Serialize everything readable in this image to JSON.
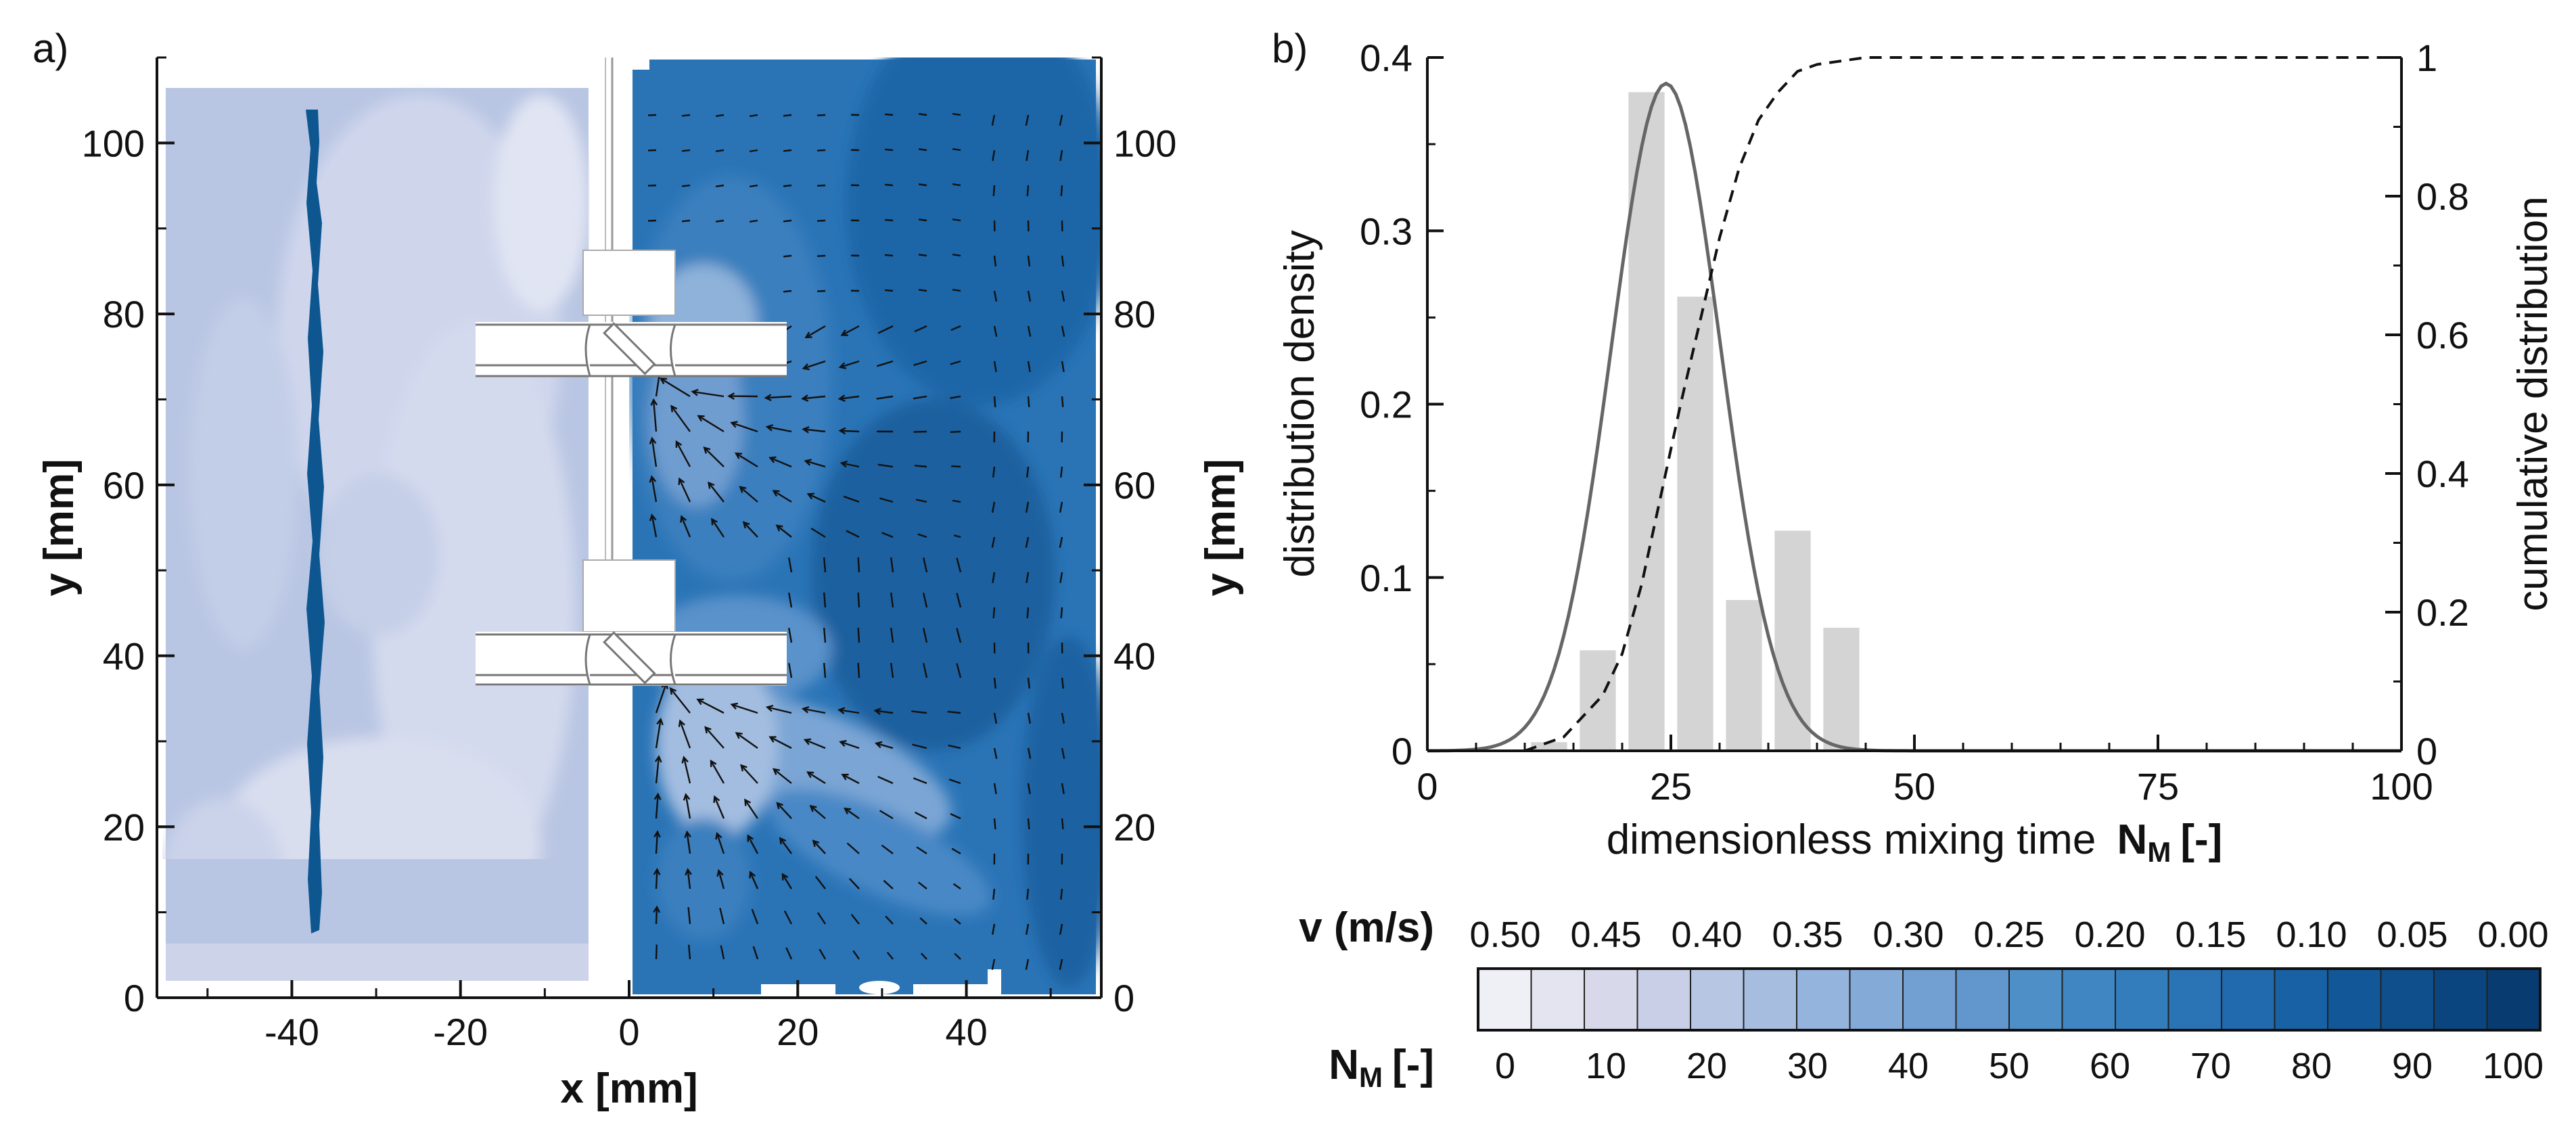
{
  "chart_data": [
    {
      "panel": "a)",
      "type": "heatmap",
      "description_type": "contour field of mixing time with velocity vectors",
      "xlabel": "x [mm]",
      "ylabel_left": "y [mm]",
      "ylabel_right": "y [mm]",
      "xlim": [
        -56,
        56
      ],
      "ylim": [
        0,
        110
      ],
      "xticks": [
        -40,
        -20,
        0,
        20,
        40
      ],
      "yticks": [
        0,
        20,
        40,
        60,
        80,
        100
      ]
    },
    {
      "panel": "b)",
      "type": "bar",
      "xlabel": "dimensionless mixing time",
      "xlabel_var": "N",
      "xlabel_sub": "M",
      "xlabel_unit": "[-]",
      "ylabel_left": "distribution density",
      "ylabel_right": "cumulative distribution",
      "xlim": [
        0,
        100
      ],
      "ylim_left": [
        0,
        0.4
      ],
      "ylim_right": [
        0,
        1
      ],
      "xticks": [
        "0",
        "25",
        "50",
        "75",
        "100"
      ],
      "yticks_left": [
        "0",
        "0.1",
        "0.2",
        "0.3",
        "0.4"
      ],
      "yticks_right": [
        "0",
        "0.2",
        "0.4",
        "0.6",
        "0.8",
        "1"
      ],
      "bars": {
        "x": [
          12.5,
          17.5,
          22.5,
          27.5,
          32.5,
          37.5,
          42.5
        ],
        "width": 3.7,
        "values": [
          0.005,
          0.058,
          0.38,
          0.262,
          0.087,
          0.127,
          0.071
        ]
      },
      "density_curve": {
        "mean": 24.5,
        "sd": 5.6,
        "peak": 0.385
      },
      "cumulative_curve": {
        "x": [
          10,
          14,
          18,
          20,
          22,
          24,
          26,
          28,
          30,
          32,
          34,
          36,
          38,
          40,
          45,
          100
        ],
        "y": [
          0,
          0.02,
          0.08,
          0.14,
          0.24,
          0.37,
          0.5,
          0.62,
          0.74,
          0.84,
          0.91,
          0.95,
          0.98,
          0.99,
          1,
          1
        ]
      }
    },
    {
      "type": "colorbar",
      "v_label": "v (m/s)",
      "n_label_var": "N",
      "n_label_sub": "M",
      "n_label_unit": "[-]",
      "v_ticks": [
        "0.50",
        "0.45",
        "0.40",
        "0.35",
        "0.30",
        "0.25",
        "0.20",
        "0.15",
        "0.10",
        "0.05",
        "0.00"
      ],
      "n_ticks": [
        "0",
        "10",
        "20",
        "30",
        "40",
        "50",
        "60",
        "70",
        "80",
        "90",
        "100"
      ],
      "colors": [
        "#efeff6",
        "#e4e4f1",
        "#d7d8ea",
        "#c9cfe6",
        "#b7c7e3",
        "#a6bde0",
        "#95b4dd",
        "#84aad8",
        "#73a0d3",
        "#6297cd",
        "#4f8fc8",
        "#3f86c2",
        "#347dbd",
        "#2a74b6",
        "#206aad",
        "#1861a4",
        "#125899",
        "#0e4f8c",
        "#0b4580",
        "#083b70"
      ]
    }
  ]
}
